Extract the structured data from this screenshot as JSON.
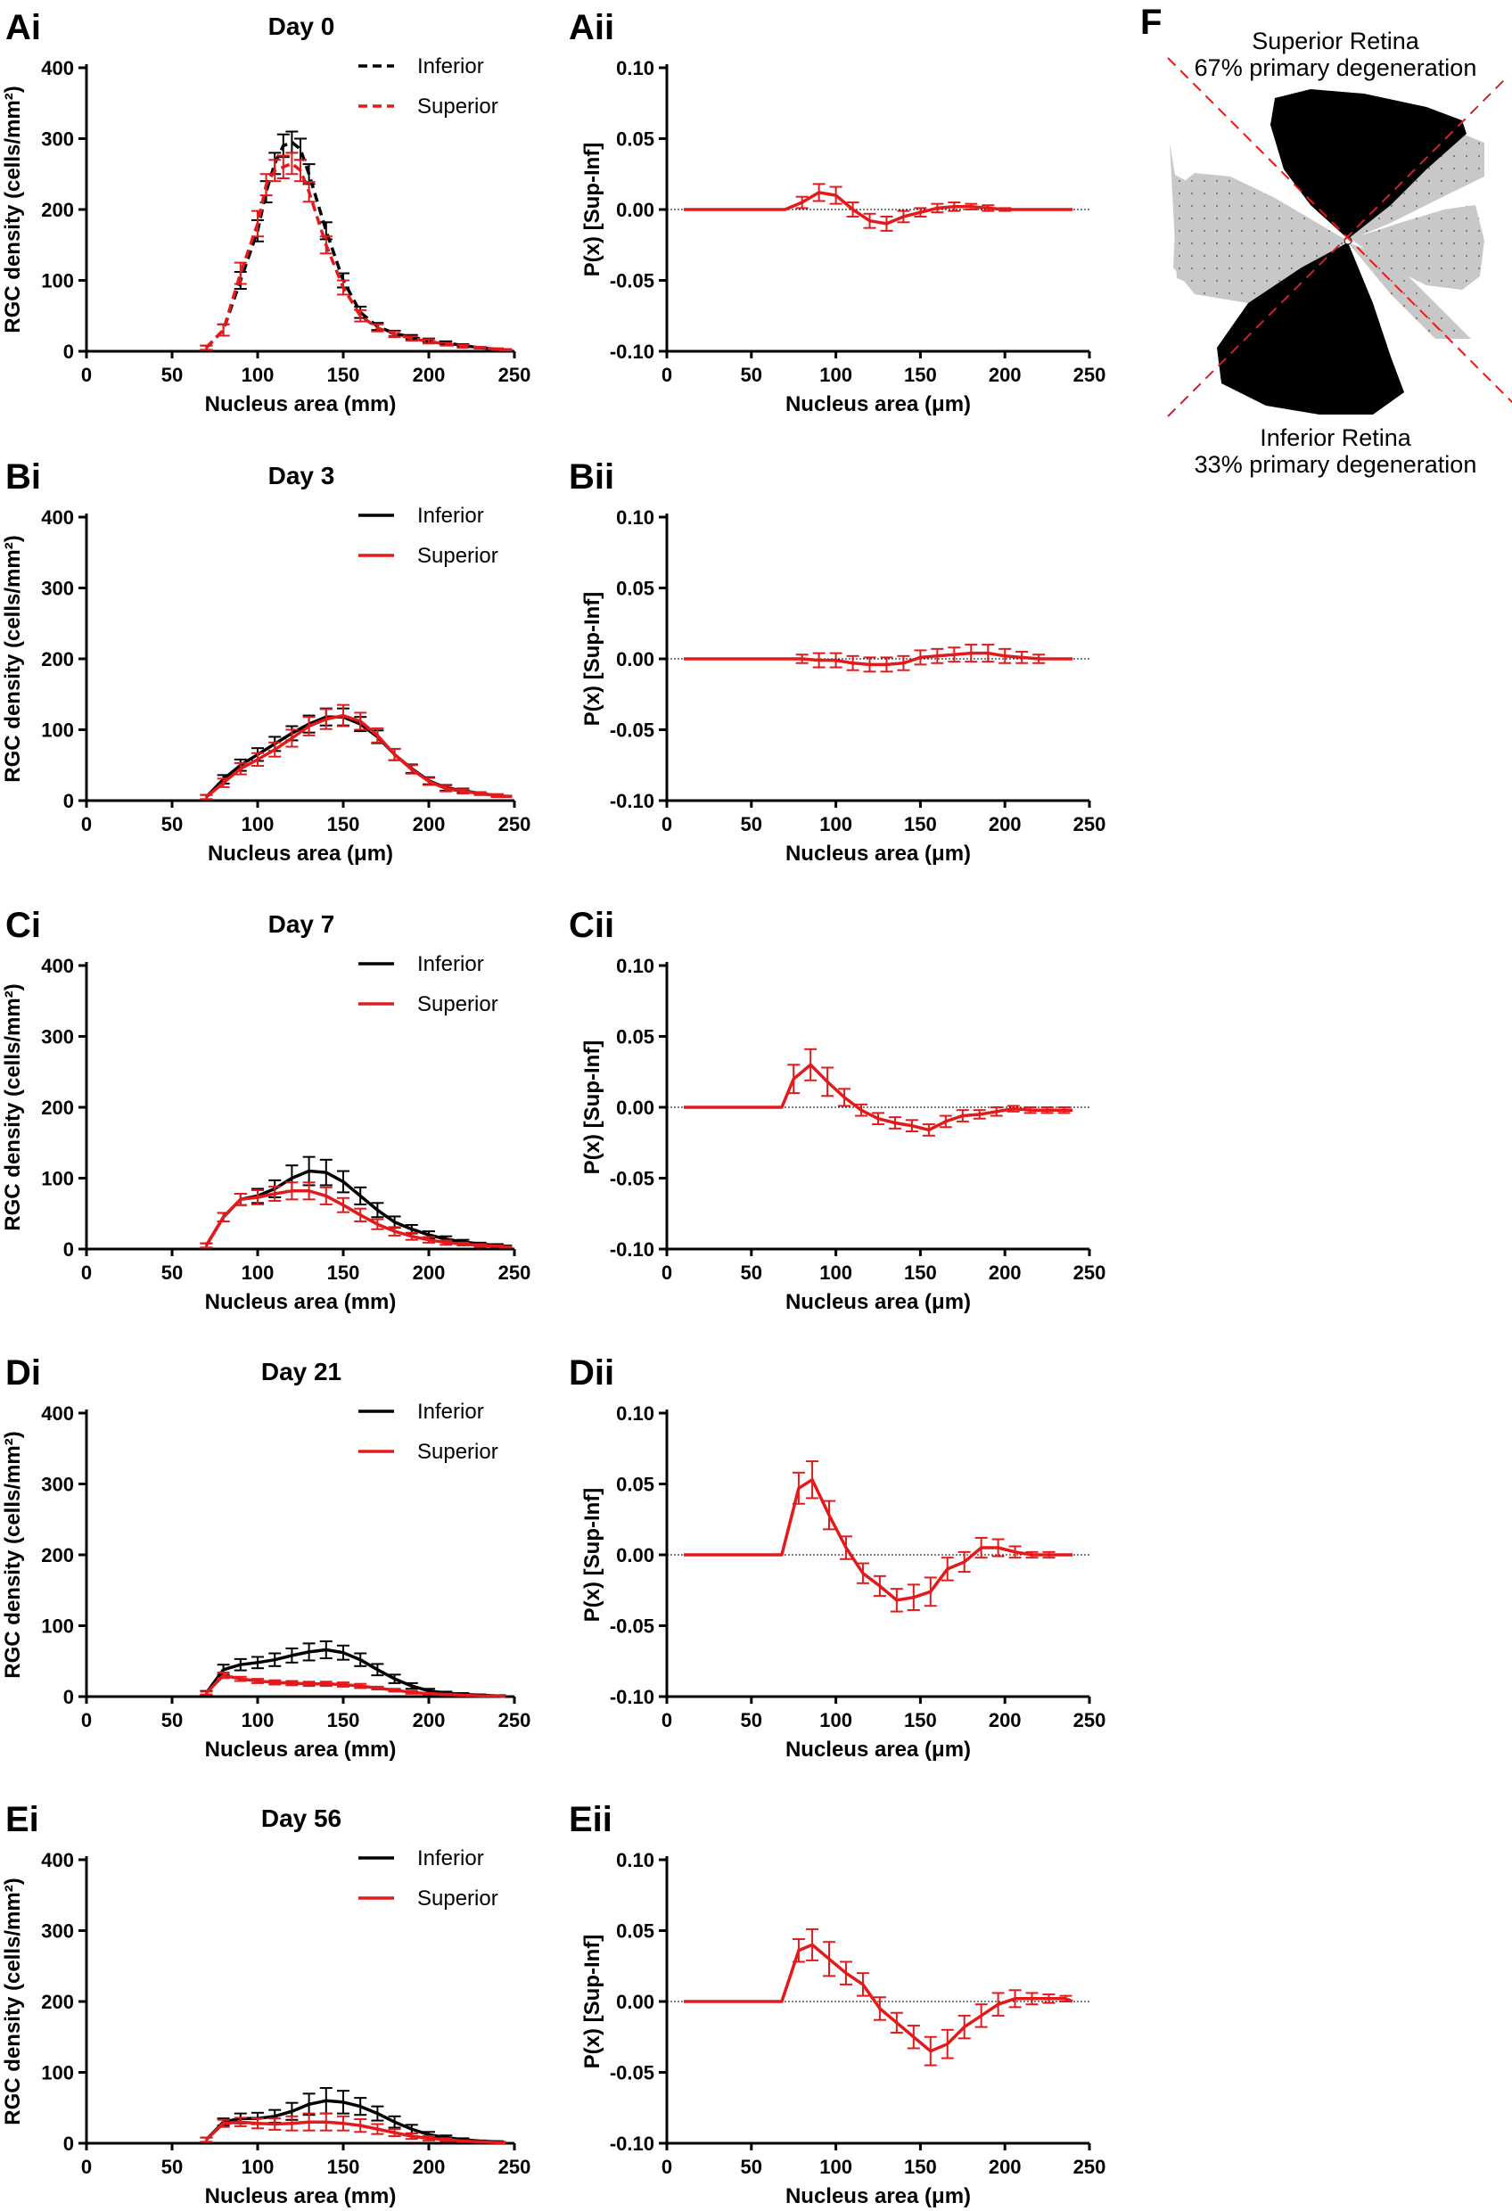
{
  "colors": {
    "inferior": "#000000",
    "superior": "#e31a1c",
    "zero_line": "#000000",
    "retina_gray": "#c8c8c8"
  },
  "legend": {
    "inferior": "Inferior",
    "superior": "Superior"
  },
  "left_x_ticks": [
    "0",
    "50",
    "100",
    "150",
    "200",
    "250"
  ],
  "left_y_ticks": [
    "0",
    "100",
    "200",
    "300",
    "400"
  ],
  "right_x_ticks": [
    "0",
    "50",
    "100",
    "150",
    "200",
    "250"
  ],
  "right_y_ticks": [
    "-0.10",
    "-0.05",
    "0.00",
    "0.05",
    "0.10"
  ],
  "ylabel_left": "RGC density  (cells/mm²)",
  "ylabel_right": "P(x) [Sup-Inf]",
  "panel_f": {
    "label": "F",
    "superior_line1": "Superior Retina",
    "superior_line2": "67% primary degeneration",
    "inferior_line1": "Inferior Retina",
    "inferior_line2": "33% primary degeneration"
  },
  "chart_data": [
    {
      "panel": "Ai",
      "title": "Day 0",
      "type": "line",
      "xlabel": "Nucleus area (mm)",
      "ylabel": "RGC density  (cells/mm²)",
      "xlim": [
        0,
        250
      ],
      "ylim": [
        0,
        400
      ],
      "dashed": true,
      "x": [
        70,
        80,
        90,
        100,
        105,
        110,
        115,
        120,
        125,
        130,
        140,
        150,
        160,
        170,
        180,
        190,
        200,
        210,
        220,
        230,
        240,
        245
      ],
      "series": [
        {
          "name": "Inferior",
          "values": [
            5,
            30,
            100,
            170,
            225,
            265,
            290,
            295,
            285,
            250,
            170,
            100,
            55,
            35,
            25,
            20,
            15,
            12,
            8,
            5,
            3,
            2
          ],
          "errors": [
            3,
            8,
            12,
            15,
            15,
            15,
            16,
            15,
            15,
            14,
            12,
            10,
            8,
            5,
            4,
            3,
            3,
            2,
            2,
            1,
            1,
            1
          ]
        },
        {
          "name": "Superior",
          "values": [
            5,
            30,
            110,
            180,
            235,
            255,
            260,
            265,
            255,
            225,
            150,
            90,
            50,
            33,
            24,
            18,
            14,
            10,
            7,
            5,
            3,
            2
          ],
          "errors": [
            3,
            8,
            15,
            18,
            15,
            15,
            16,
            15,
            15,
            14,
            12,
            10,
            8,
            5,
            4,
            3,
            3,
            2,
            2,
            1,
            1,
            1
          ]
        }
      ]
    },
    {
      "panel": "Aii",
      "title": "",
      "type": "line",
      "xlabel": "Nucleus area (μm)",
      "ylabel": "P(x) [Sup-Inf]",
      "xlim": [
        0,
        250
      ],
      "ylim": [
        -0.1,
        0.1
      ],
      "x": [
        10,
        70,
        80,
        90,
        100,
        110,
        120,
        130,
        140,
        150,
        160,
        170,
        180,
        190,
        200,
        210,
        220,
        230,
        240
      ],
      "series": [
        {
          "name": "Superior",
          "values": [
            0,
            0,
            0.005,
            0.012,
            0.01,
            0.0,
            -0.008,
            -0.01,
            -0.005,
            -0.002,
            0.001,
            0.002,
            0.002,
            0.001,
            0,
            0,
            0,
            0,
            0
          ],
          "errors": [
            0,
            0,
            0.004,
            0.006,
            0.006,
            0.005,
            0.005,
            0.005,
            0.004,
            0.003,
            0.003,
            0.003,
            0.002,
            0.002,
            0.001,
            0,
            0,
            0,
            0
          ]
        }
      ]
    },
    {
      "panel": "Bi",
      "title": "Day 3",
      "type": "line",
      "xlabel": "Nucleus area (μm)",
      "ylabel": "RGC density  (cells/mm²)",
      "xlim": [
        0,
        250
      ],
      "ylim": [
        0,
        400
      ],
      "dashed": false,
      "x": [
        70,
        80,
        90,
        100,
        110,
        120,
        130,
        140,
        150,
        160,
        170,
        180,
        190,
        200,
        210,
        220,
        230,
        240,
        245
      ],
      "series": [
        {
          "name": "Inferior",
          "values": [
            5,
            30,
            50,
            65,
            80,
            95,
            108,
            118,
            118,
            108,
            90,
            65,
            45,
            28,
            18,
            14,
            10,
            7,
            6
          ],
          "errors": [
            3,
            6,
            8,
            9,
            10,
            10,
            12,
            12,
            12,
            10,
            9,
            8,
            6,
            5,
            4,
            3,
            2,
            2,
            1
          ]
        },
        {
          "name": "Superior",
          "values": [
            5,
            25,
            45,
            58,
            72,
            88,
            105,
            115,
            120,
            112,
            92,
            65,
            44,
            27,
            17,
            13,
            10,
            7,
            6
          ],
          "errors": [
            3,
            6,
            8,
            9,
            10,
            12,
            13,
            14,
            15,
            12,
            10,
            8,
            6,
            5,
            4,
            3,
            2,
            2,
            1
          ]
        }
      ]
    },
    {
      "panel": "Bii",
      "title": "",
      "type": "line",
      "xlabel": "Nucleus area (μm)",
      "ylabel": "P(x) [Sup-Inf]",
      "xlim": [
        0,
        250
      ],
      "ylim": [
        -0.1,
        0.1
      ],
      "x": [
        10,
        70,
        80,
        90,
        100,
        110,
        120,
        130,
        140,
        150,
        160,
        170,
        180,
        190,
        200,
        210,
        220,
        230,
        240
      ],
      "series": [
        {
          "name": "Superior",
          "values": [
            0,
            0,
            0,
            -0.001,
            -0.001,
            -0.003,
            -0.004,
            -0.004,
            -0.003,
            0.001,
            0.002,
            0.003,
            0.004,
            0.004,
            0.002,
            0.001,
            0,
            0,
            0
          ],
          "errors": [
            0,
            0,
            0.003,
            0.005,
            0.005,
            0.005,
            0.005,
            0.005,
            0.005,
            0.005,
            0.005,
            0.005,
            0.006,
            0.006,
            0.005,
            0.004,
            0.003,
            0,
            0
          ]
        }
      ]
    },
    {
      "panel": "Ci",
      "title": "Day 7",
      "type": "line",
      "xlabel": "Nucleus area (mm)",
      "ylabel": "RGC density  (cells/mm²)",
      "xlim": [
        0,
        250
      ],
      "ylim": [
        0,
        400
      ],
      "dashed": false,
      "x": [
        70,
        80,
        90,
        100,
        110,
        120,
        130,
        140,
        150,
        160,
        170,
        180,
        190,
        200,
        210,
        220,
        230,
        240,
        245
      ],
      "series": [
        {
          "name": "Inferior",
          "values": [
            5,
            45,
            70,
            75,
            85,
            100,
            110,
            108,
            95,
            75,
            55,
            38,
            28,
            20,
            14,
            10,
            7,
            5,
            4
          ],
          "errors": [
            3,
            6,
            8,
            10,
            12,
            18,
            20,
            18,
            15,
            12,
            10,
            8,
            6,
            5,
            4,
            3,
            2,
            2,
            1
          ]
        },
        {
          "name": "Superior",
          "values": [
            5,
            45,
            70,
            73,
            78,
            82,
            82,
            75,
            62,
            48,
            35,
            25,
            18,
            13,
            9,
            7,
            5,
            4,
            3
          ],
          "errors": [
            3,
            6,
            8,
            10,
            10,
            12,
            12,
            12,
            10,
            9,
            7,
            6,
            5,
            4,
            3,
            2,
            2,
            1,
            1
          ]
        }
      ]
    },
    {
      "panel": "Cii",
      "title": "",
      "type": "line",
      "xlabel": "Nucleus area (μm)",
      "ylabel": "P(x) [Sup-Inf]",
      "xlim": [
        0,
        250
      ],
      "ylim": [
        -0.1,
        0.1
      ],
      "x": [
        10,
        68,
        75,
        85,
        95,
        105,
        115,
        125,
        135,
        145,
        155,
        165,
        175,
        185,
        195,
        205,
        215,
        225,
        235,
        240
      ],
      "series": [
        {
          "name": "Superior",
          "values": [
            0,
            0,
            0.02,
            0.03,
            0.018,
            0.007,
            -0.002,
            -0.008,
            -0.011,
            -0.013,
            -0.016,
            -0.01,
            -0.006,
            -0.005,
            -0.003,
            -0.001,
            -0.002,
            -0.002,
            -0.002,
            -0.002
          ],
          "errors": [
            0,
            0,
            0.01,
            0.011,
            0.01,
            0.006,
            0.004,
            0.004,
            0.004,
            0.004,
            0.004,
            0.004,
            0.004,
            0.003,
            0.003,
            0.002,
            0.002,
            0.002,
            0.002,
            0
          ]
        }
      ]
    },
    {
      "panel": "Di",
      "title": "Day 21",
      "type": "line",
      "xlabel": "Nucleus area (mm)",
      "ylabel": "RGC density  (cells/mm²)",
      "xlim": [
        0,
        250
      ],
      "ylim": [
        0,
        400
      ],
      "dashed": false,
      "x": [
        70,
        80,
        90,
        100,
        110,
        120,
        130,
        140,
        150,
        160,
        170,
        180,
        190,
        200,
        210,
        220,
        230,
        240,
        245
      ],
      "series": [
        {
          "name": "Inferior",
          "values": [
            5,
            38,
            45,
            48,
            52,
            58,
            63,
            66,
            62,
            52,
            38,
            25,
            15,
            8,
            5,
            3,
            2,
            1,
            1
          ],
          "errors": [
            3,
            7,
            8,
            8,
            9,
            10,
            12,
            12,
            10,
            9,
            8,
            6,
            4,
            3,
            2,
            2,
            1,
            1,
            0
          ]
        },
        {
          "name": "Superior",
          "values": [
            5,
            30,
            25,
            22,
            20,
            19,
            18,
            18,
            17,
            15,
            12,
            9,
            6,
            4,
            3,
            2,
            1,
            1,
            0
          ],
          "errors": [
            2,
            4,
            3,
            3,
            3,
            3,
            3,
            3,
            3,
            3,
            2,
            2,
            2,
            1,
            1,
            0,
            0,
            0,
            0
          ]
        }
      ]
    },
    {
      "panel": "Dii",
      "title": "",
      "type": "line",
      "xlabel": "Nucleus area (μm)",
      "ylabel": "P(x) [Sup-Inf]",
      "xlim": [
        0,
        250
      ],
      "ylim": [
        -0.1,
        0.1
      ],
      "x": [
        10,
        68,
        78,
        86,
        96,
        106,
        116,
        126,
        136,
        146,
        156,
        166,
        176,
        186,
        196,
        206,
        216,
        226,
        236,
        240
      ],
      "series": [
        {
          "name": "Superior",
          "values": [
            0,
            0,
            0.047,
            0.053,
            0.028,
            0.005,
            -0.013,
            -0.022,
            -0.032,
            -0.03,
            -0.026,
            -0.01,
            -0.005,
            0.005,
            0.005,
            0.002,
            0,
            0,
            0,
            0
          ],
          "errors": [
            0,
            0,
            0.011,
            0.013,
            0.01,
            0.008,
            0.007,
            0.007,
            0.008,
            0.009,
            0.01,
            0.008,
            0.007,
            0.007,
            0.006,
            0.004,
            0.002,
            0.002,
            0,
            0
          ]
        }
      ]
    },
    {
      "panel": "Ei",
      "title": "Day 56",
      "type": "line",
      "xlabel": "Nucleus area (mm)",
      "ylabel": "RGC density  (cells/mm²)",
      "xlim": [
        0,
        250
      ],
      "ylim": [
        0,
        400
      ],
      "dashed": false,
      "x": [
        70,
        80,
        90,
        100,
        110,
        120,
        130,
        140,
        150,
        160,
        170,
        180,
        190,
        200,
        210,
        220,
        230,
        240,
        245
      ],
      "series": [
        {
          "name": "Inferior",
          "values": [
            5,
            30,
            35,
            35,
            38,
            45,
            55,
            60,
            58,
            52,
            42,
            30,
            20,
            12,
            8,
            5,
            3,
            2,
            1
          ],
          "errors": [
            3,
            5,
            7,
            8,
            9,
            12,
            15,
            18,
            16,
            12,
            10,
            8,
            6,
            4,
            3,
            2,
            1,
            1,
            0
          ]
        },
        {
          "name": "Superior",
          "values": [
            5,
            28,
            30,
            28,
            27,
            28,
            30,
            30,
            28,
            25,
            20,
            15,
            10,
            7,
            5,
            3,
            2,
            1,
            1
          ],
          "errors": [
            3,
            5,
            6,
            7,
            8,
            10,
            12,
            12,
            10,
            9,
            7,
            5,
            4,
            3,
            2,
            1,
            1,
            0,
            0
          ]
        }
      ]
    },
    {
      "panel": "Eii",
      "title": "",
      "type": "line",
      "xlabel": "Nucleus area (μm)",
      "ylabel": "P(x) [Sup-Inf]",
      "xlim": [
        0,
        250
      ],
      "ylim": [
        -0.1,
        0.1
      ],
      "x": [
        10,
        68,
        78,
        86,
        96,
        106,
        116,
        126,
        136,
        146,
        156,
        166,
        176,
        186,
        196,
        206,
        216,
        226,
        236,
        240
      ],
      "series": [
        {
          "name": "Superior",
          "values": [
            0,
            0,
            0.036,
            0.04,
            0.03,
            0.02,
            0.012,
            -0.005,
            -0.015,
            -0.025,
            -0.035,
            -0.03,
            -0.018,
            -0.01,
            -0.002,
            0.002,
            0.002,
            0.002,
            0.002,
            0
          ],
          "errors": [
            0,
            0,
            0.008,
            0.011,
            0.012,
            0.008,
            0.008,
            0.008,
            0.007,
            0.008,
            0.01,
            0.01,
            0.008,
            0.008,
            0.008,
            0.006,
            0.004,
            0.003,
            0.002,
            0
          ]
        }
      ]
    }
  ]
}
